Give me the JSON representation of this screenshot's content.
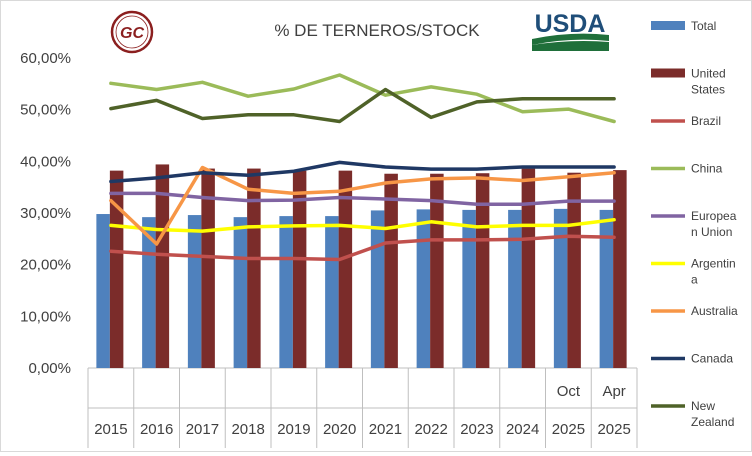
{
  "chart_data": {
    "type": "bar+line",
    "title": "% DE TERNEROS/STOCK",
    "logos": {
      "left": "GC",
      "right": "USDA"
    },
    "x": [
      "2015",
      "2016",
      "2017",
      "2018",
      "2019",
      "2020",
      "2021",
      "2022",
      "2023",
      "2024",
      "2025",
      "2025"
    ],
    "x_sub": [
      "",
      "",
      "",
      "",
      "",
      "",
      "",
      "",
      "",
      "",
      "Oct",
      "Apr"
    ],
    "ylim": [
      0,
      60
    ],
    "yticks": [
      "0,00%",
      "10,00%",
      "20,00%",
      "30,00%",
      "40,00%",
      "50,00%",
      "60,00%"
    ],
    "grid": false,
    "legend_position": "right",
    "colors": {
      "Total": "#4f81bd",
      "United States": "#7b2c2a",
      "Brazil": "#c0504d",
      "China": "#9bbb59",
      "European Union": "#8064a2",
      "Argentina": "#ffff00",
      "Australia": "#f79646",
      "Canada": "#1f3864",
      "New Zealand": "#4f6228"
    },
    "series": [
      {
        "name": "Total",
        "kind": "bar",
        "values": [
          29.8,
          29.2,
          29.6,
          29.2,
          29.4,
          29.4,
          30.5,
          30.7,
          30.6,
          30.6,
          30.8,
          30.6
        ]
      },
      {
        "name": "United States",
        "kind": "bar",
        "values": [
          38.2,
          39.4,
          38.6,
          38.6,
          38.2,
          38.2,
          37.6,
          37.6,
          37.7,
          38.6,
          37.8,
          38.3
        ]
      },
      {
        "name": "Brazil",
        "kind": "line",
        "values": [
          22.6,
          22.0,
          21.6,
          21.2,
          21.2,
          21.0,
          24.2,
          24.8,
          24.8,
          24.9,
          25.5,
          25.3
        ]
      },
      {
        "name": "China",
        "kind": "line",
        "values": [
          55.1,
          53.9,
          55.3,
          52.6,
          54.0,
          56.7,
          52.8,
          54.4,
          53.0,
          49.6,
          50.1,
          47.7
        ]
      },
      {
        "name": "European Union",
        "kind": "line",
        "values": [
          33.8,
          33.8,
          33.0,
          32.4,
          32.5,
          33.0,
          32.7,
          32.4,
          31.7,
          31.7,
          32.3,
          32.3
        ]
      },
      {
        "name": "Argentina",
        "kind": "line",
        "values": [
          27.6,
          26.8,
          26.5,
          27.3,
          27.5,
          27.6,
          27.0,
          28.3,
          27.3,
          27.6,
          27.6,
          28.7
        ]
      },
      {
        "name": "Australia",
        "kind": "line",
        "values": [
          32.4,
          24.0,
          38.8,
          34.6,
          33.8,
          34.2,
          35.8,
          36.6,
          36.8,
          36.3,
          37.0,
          37.8
        ]
      },
      {
        "name": "Canada",
        "kind": "line",
        "values": [
          36.1,
          36.8,
          37.8,
          37.3,
          38.1,
          39.8,
          38.9,
          38.5,
          38.5,
          38.9,
          38.9,
          38.9
        ]
      },
      {
        "name": "New Zealand",
        "kind": "line",
        "values": [
          50.2,
          51.8,
          48.3,
          49.0,
          49.0,
          47.7,
          53.9,
          48.5,
          51.5,
          52.1,
          52.1,
          52.1
        ]
      }
    ],
    "legend_lines": {
      "Total": [
        "Total"
      ],
      "United States": [
        "United",
        "States"
      ],
      "Brazil": [
        "Brazil"
      ],
      "China": [
        "China"
      ],
      "European Union": [
        "Europea",
        "n Union"
      ],
      "Argentina": [
        "Argentin",
        "a"
      ],
      "Australia": [
        "Australia"
      ],
      "Canada": [
        "Canada"
      ],
      "New Zealand": [
        "New",
        "Zealand"
      ]
    }
  }
}
